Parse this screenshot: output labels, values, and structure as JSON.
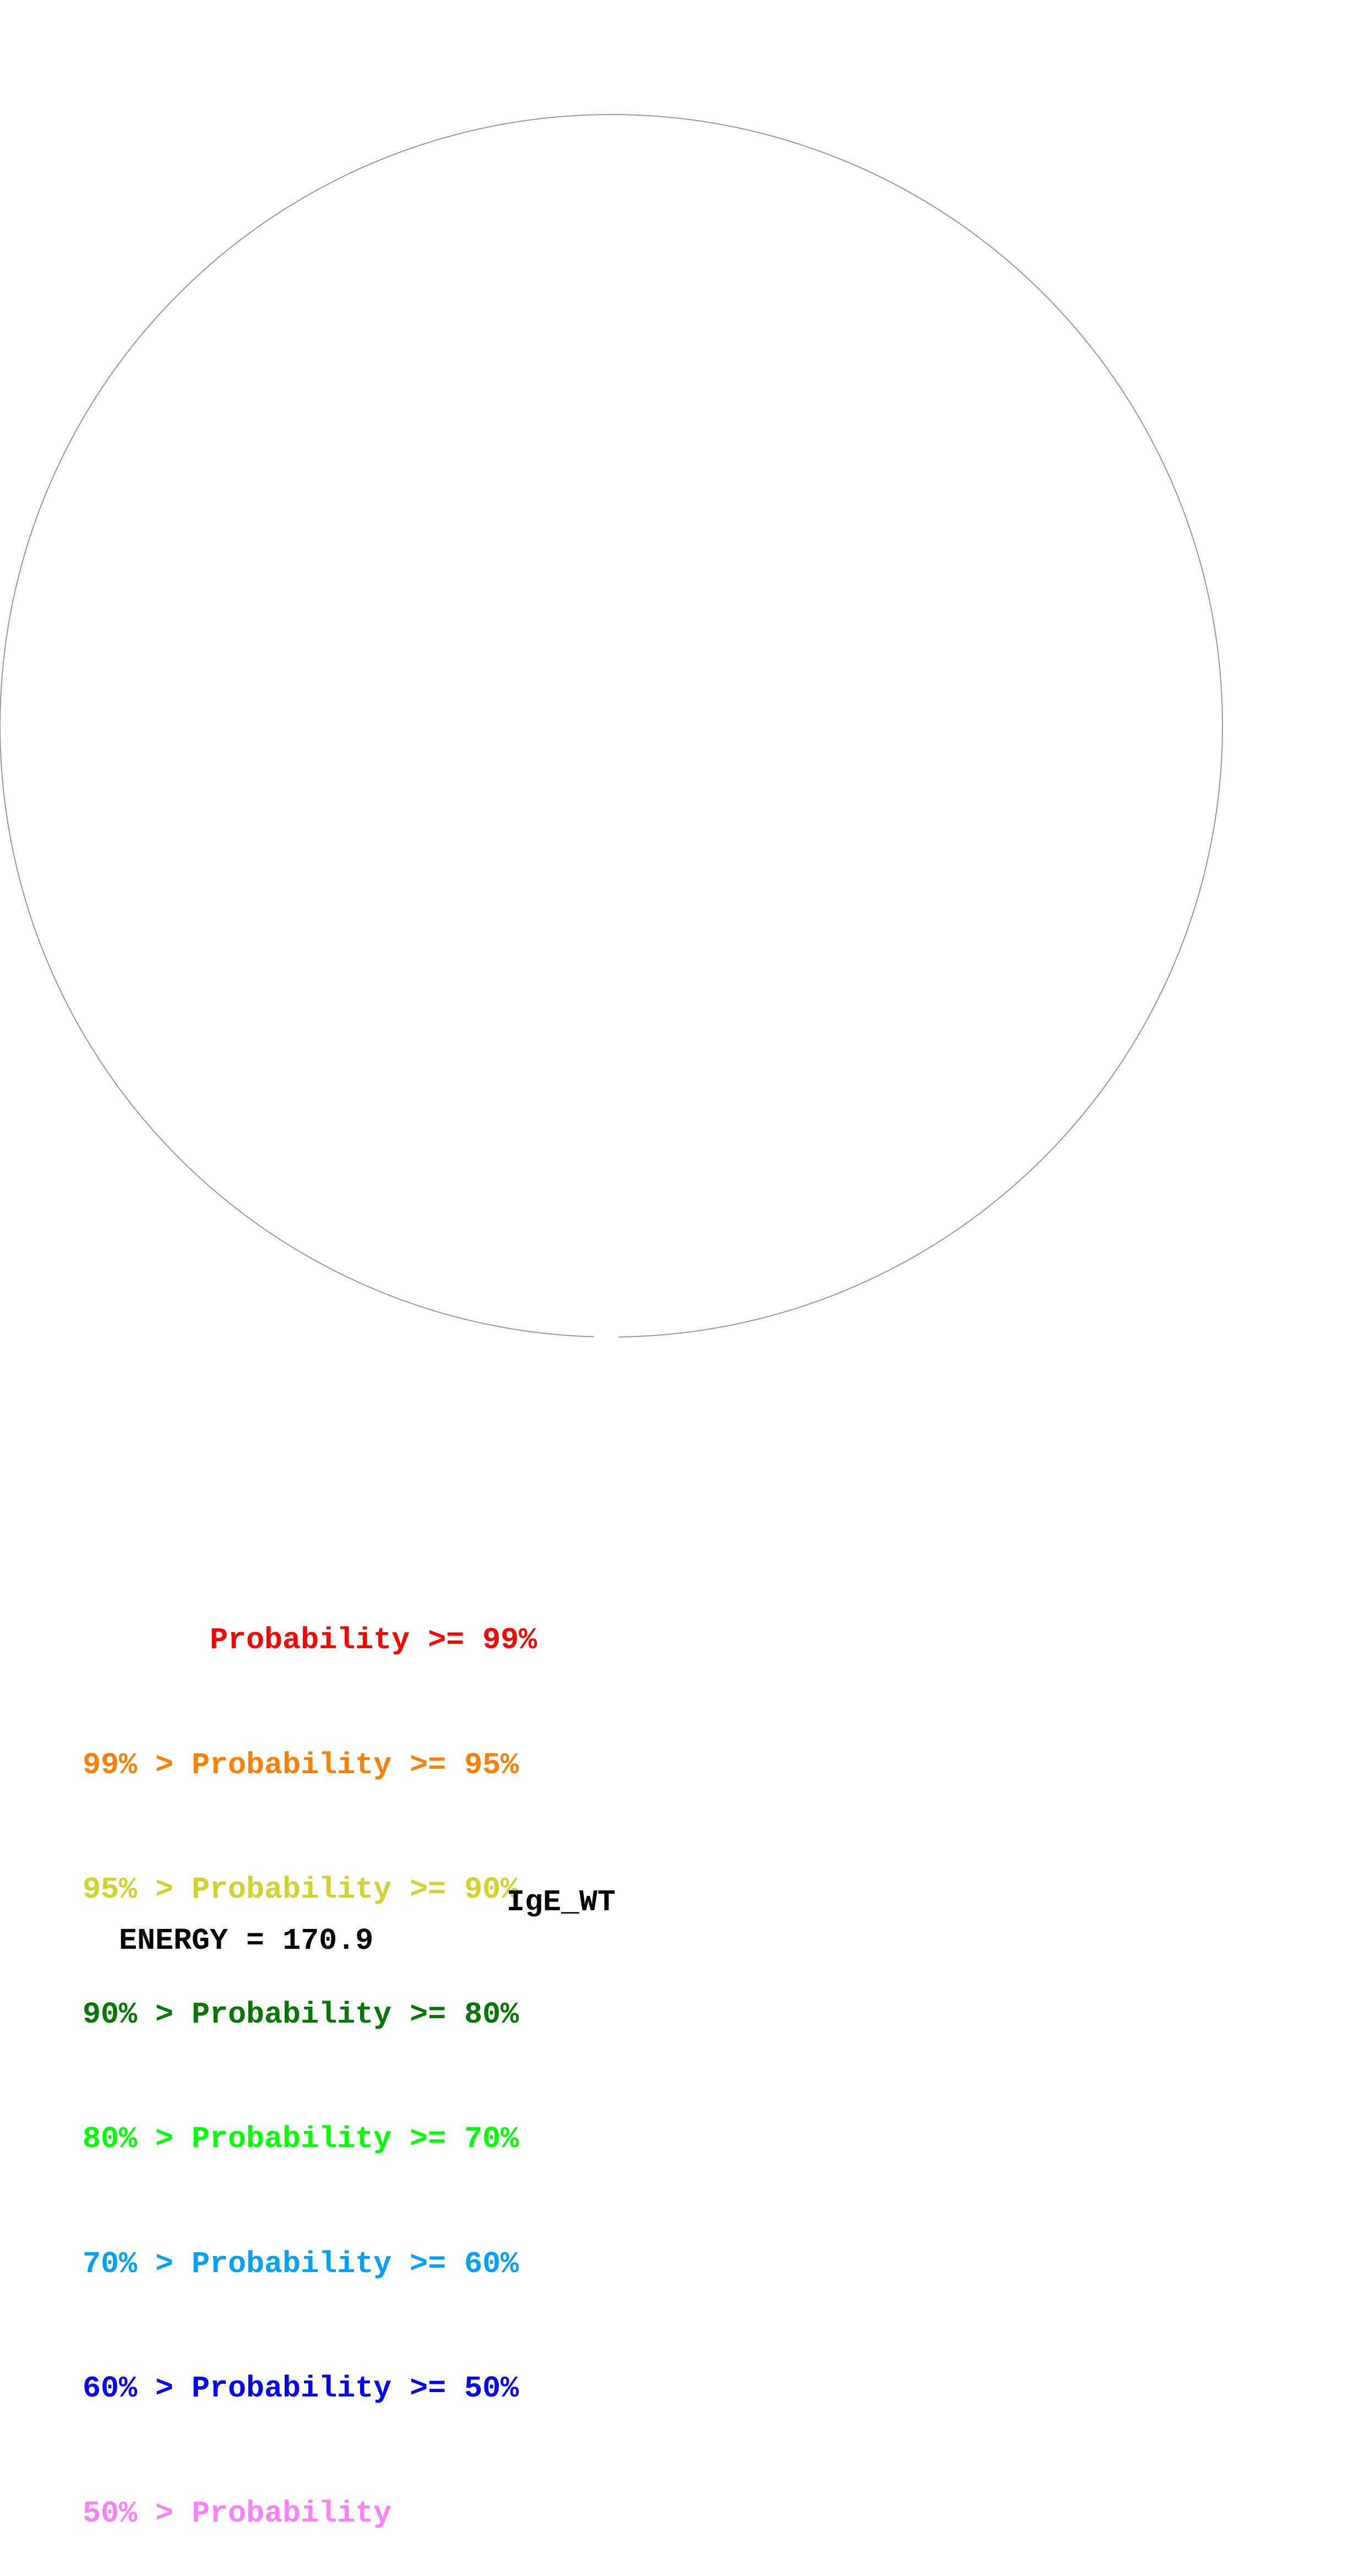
{
  "diagram": {
    "type": "RNA secondary structure circle plot",
    "outline_color": "#999999"
  },
  "legend": [
    {
      "text": "       Probability >= 99%",
      "color": "#ff0000"
    },
    {
      "text": "99% > Probability >= 95%",
      "color": "#ff7f00"
    },
    {
      "text": "95% > Probability >= 90%",
      "color": "#d2d22d"
    },
    {
      "text": "90% > Probability >= 80%",
      "color": "#007800"
    },
    {
      "text": "80% > Probability >= 70%",
      "color": "#00ff00"
    },
    {
      "text": "70% > Probability >= 60%",
      "color": "#00a0ff"
    },
    {
      "text": "60% > Probability >= 50%",
      "color": "#0000ff"
    },
    {
      "text": "50% > Probability",
      "color": "#ff7fff"
    }
  ],
  "footer": {
    "energy": "ENERGY = 170.9",
    "name": "IgE_WT"
  }
}
